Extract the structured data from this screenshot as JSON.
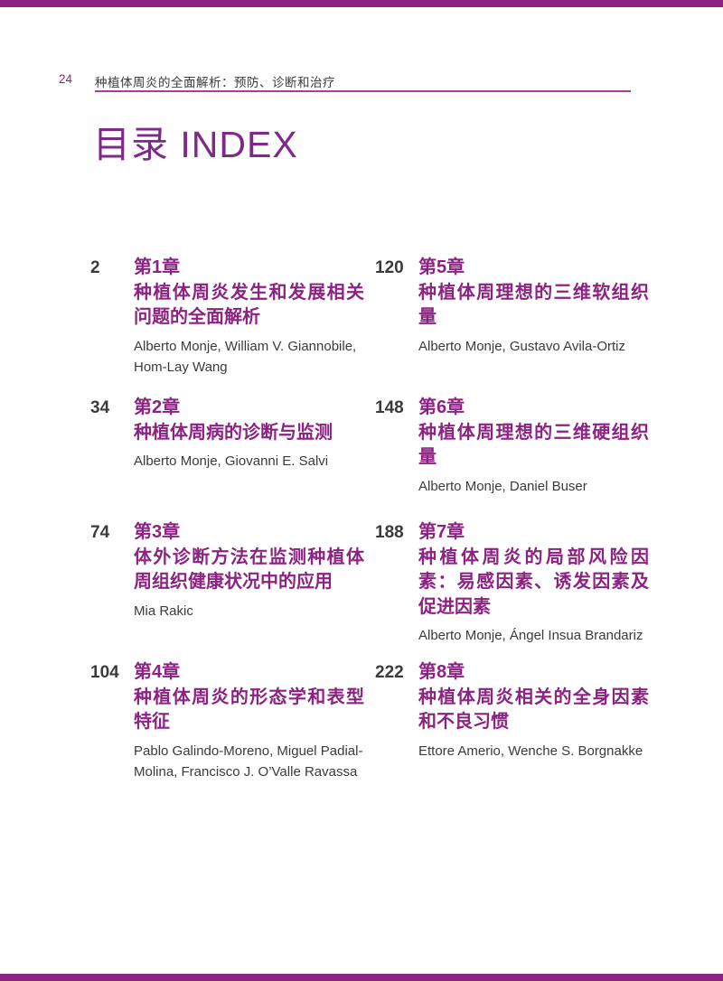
{
  "header": {
    "page_number": "24",
    "running_title": "种植体周炎的全面解析：预防、诊断和治疗"
  },
  "title": "目录 INDEX",
  "colors": {
    "accent_purple": "#8c2383",
    "title_purple": "#7e2a89",
    "rule_purple": "#a93d9a",
    "text_dark": "#3b3b3a"
  },
  "toc": {
    "left": [
      {
        "page": "2",
        "chapter": "第1章",
        "title": "种植体周炎发生和发展相关问题的全面解析",
        "authors": "Alberto Monje, William V. Giannobile, Hom-Lay Wang"
      },
      {
        "page": "34",
        "chapter": "第2章",
        "title": "种植体周病的诊断与监测",
        "authors": "Alberto Monje, Giovanni E. Salvi"
      },
      {
        "page": "74",
        "chapter": "第3章",
        "title": "体外诊断方法在监测种植体周组织健康状况中的应用",
        "authors": "Mia Rakic"
      },
      {
        "page": "104",
        "chapter": "第4章",
        "title": "种植体周炎的形态学和表型特征",
        "authors": "Pablo Galindo-Moreno, Miguel Padial-Molina, Francisco J. O’Valle Ravassa"
      }
    ],
    "right": [
      {
        "page": "120",
        "chapter": "第5章",
        "title": "种植体周理想的三维软组织量",
        "authors": "Alberto Monje, Gustavo Avila-Ortiz"
      },
      {
        "page": "148",
        "chapter": "第6章",
        "title": "种植体周理想的三维硬组织量",
        "authors": "Alberto Monje, Daniel Buser"
      },
      {
        "page": "188",
        "chapter": "第7章",
        "title": "种植体周炎的局部风险因素：易感因素、诱发因素及促进因素",
        "authors": "Alberto Monje, Ángel Insua Brandariz"
      },
      {
        "page": "222",
        "chapter": "第8章",
        "title": "种植体周炎相关的全身因素和不良习惯",
        "authors": "Ettore Amerio, Wenche S. Borgnakke"
      }
    ]
  }
}
